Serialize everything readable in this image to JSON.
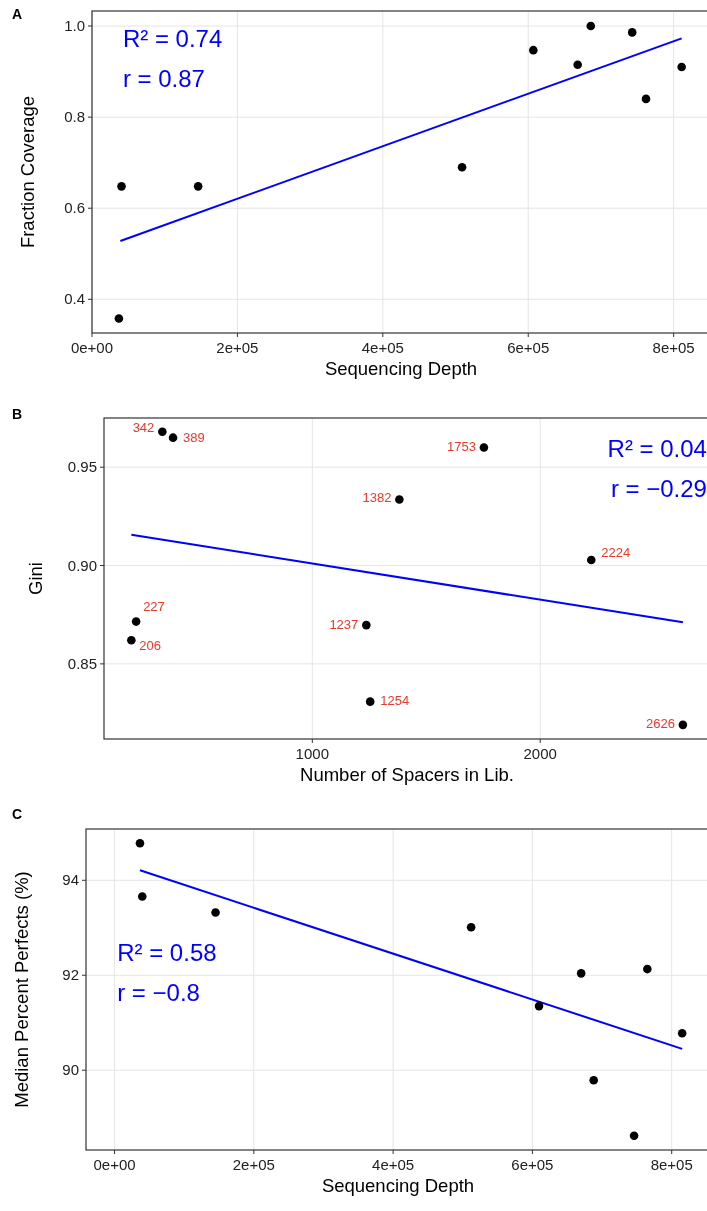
{
  "chart_data": [
    {
      "type": "scatter",
      "title": "A",
      "xlabel": "Sequencing Depth",
      "ylabel": "Fraction Coverage",
      "xlim": [
        0,
        850000
      ],
      "ylim": [
        0.326,
        1.033
      ],
      "xticks": [
        {
          "value": 0,
          "label": "0e+00"
        },
        {
          "value": 200000,
          "label": "2e+05"
        },
        {
          "value": 400000,
          "label": "4e+05"
        },
        {
          "value": 600000,
          "label": "6e+05"
        },
        {
          "value": 800000,
          "label": "8e+05"
        }
      ],
      "yticks": [
        {
          "value": 0.4,
          "label": "0.4"
        },
        {
          "value": 0.6,
          "label": "0.6"
        },
        {
          "value": 0.8,
          "label": "0.8"
        },
        {
          "value": 1.0,
          "label": "1.0"
        }
      ],
      "grid": true,
      "annotations": [
        "R² = 0.74",
        "r = 0.87"
      ],
      "series": [
        {
          "color": "#000000",
          "marker": "circle",
          "x": [
            37000,
            40600,
            146000,
            509000,
            607000,
            668000,
            686000,
            743000,
            762000,
            811000
          ],
          "values": [
            0.358,
            0.648,
            0.648,
            0.69,
            0.947,
            0.915,
            1.0,
            0.986,
            0.84,
            0.91
          ]
        },
        {
          "type": "line",
          "color": "#0000ff",
          "x": [
            39000,
            811000
          ],
          "values": [
            0.528,
            0.973
          ]
        }
      ]
    },
    {
      "type": "scatter",
      "title": "B",
      "xlabel": "Number of Spacers in Lib.",
      "ylabel": "Gini",
      "xlim": [
        86,
        2745
      ],
      "ylim": [
        0.8118,
        0.975
      ],
      "xticks": [
        1000,
        2000
      ],
      "yticks": [
        {
          "value": 0.85,
          "label": "0.85"
        },
        {
          "value": 0.9,
          "label": "0.90"
        },
        {
          "value": 0.95,
          "label": "0.95"
        }
      ],
      "grid": true,
      "annotations": [
        "R² = 0.04",
        "r = −0.29",
        {
          "text": "342",
          "x": 342,
          "y": 0.968
        },
        {
          "text": "389",
          "x": 389,
          "y": 0.965
        },
        {
          "text": "1753",
          "x": 1753,
          "y": 0.96
        },
        {
          "text": "1382",
          "x": 1382,
          "y": 0.9336
        },
        {
          "text": "2224",
          "x": 2224,
          "y": 0.9028
        },
        {
          "text": "227",
          "x": 227,
          "y": 0.8715
        },
        {
          "text": "206",
          "x": 206,
          "y": 0.862
        },
        {
          "text": "1237",
          "x": 1237,
          "y": 0.8697
        },
        {
          "text": "1254",
          "x": 1254,
          "y": 0.8308
        },
        {
          "text": "2626",
          "x": 2626,
          "y": 0.819
        }
      ],
      "series": [
        {
          "color": "#000000",
          "marker": "circle",
          "x": [
            342,
            389,
            1753,
            1382,
            2224,
            227,
            206,
            1237,
            1254,
            2626
          ],
          "values": [
            0.968,
            0.965,
            0.96,
            0.9336,
            0.9028,
            0.8715,
            0.862,
            0.8697,
            0.8308,
            0.819
          ]
        },
        {
          "type": "line",
          "color": "#0000ff",
          "x": [
            206,
            2626
          ],
          "values": [
            0.9157,
            0.8711
          ]
        }
      ]
    },
    {
      "type": "scatter",
      "title": "C",
      "xlabel": "Sequencing Depth",
      "ylabel": "Median Percent Perfects (%)",
      "xlim": [
        -41000,
        855000
      ],
      "ylim": [
        88.32,
        95.08
      ],
      "xticks": [
        {
          "value": 0,
          "label": "0e+00"
        },
        {
          "value": 200000,
          "label": "2e+05"
        },
        {
          "value": 400000,
          "label": "4e+05"
        },
        {
          "value": 600000,
          "label": "6e+05"
        },
        {
          "value": 800000,
          "label": "8e+05"
        }
      ],
      "yticks": [
        90,
        92,
        94
      ],
      "grid": true,
      "annotations": [
        "R² = 0.58",
        "r = −0.8"
      ],
      "series": [
        {
          "color": "#000000",
          "marker": "circle",
          "x": [
            36500,
            39800,
            145000,
            512000,
            609500,
            670000,
            688000,
            746000,
            765000,
            815000
          ],
          "values": [
            94.78,
            93.66,
            93.32,
            93.01,
            91.35,
            92.04,
            89.79,
            88.62,
            92.13,
            90.78
          ]
        },
        {
          "type": "line",
          "color": "#0000ff",
          "x": [
            36500,
            815000
          ],
          "values": [
            94.21,
            90.45
          ]
        }
      ]
    }
  ]
}
